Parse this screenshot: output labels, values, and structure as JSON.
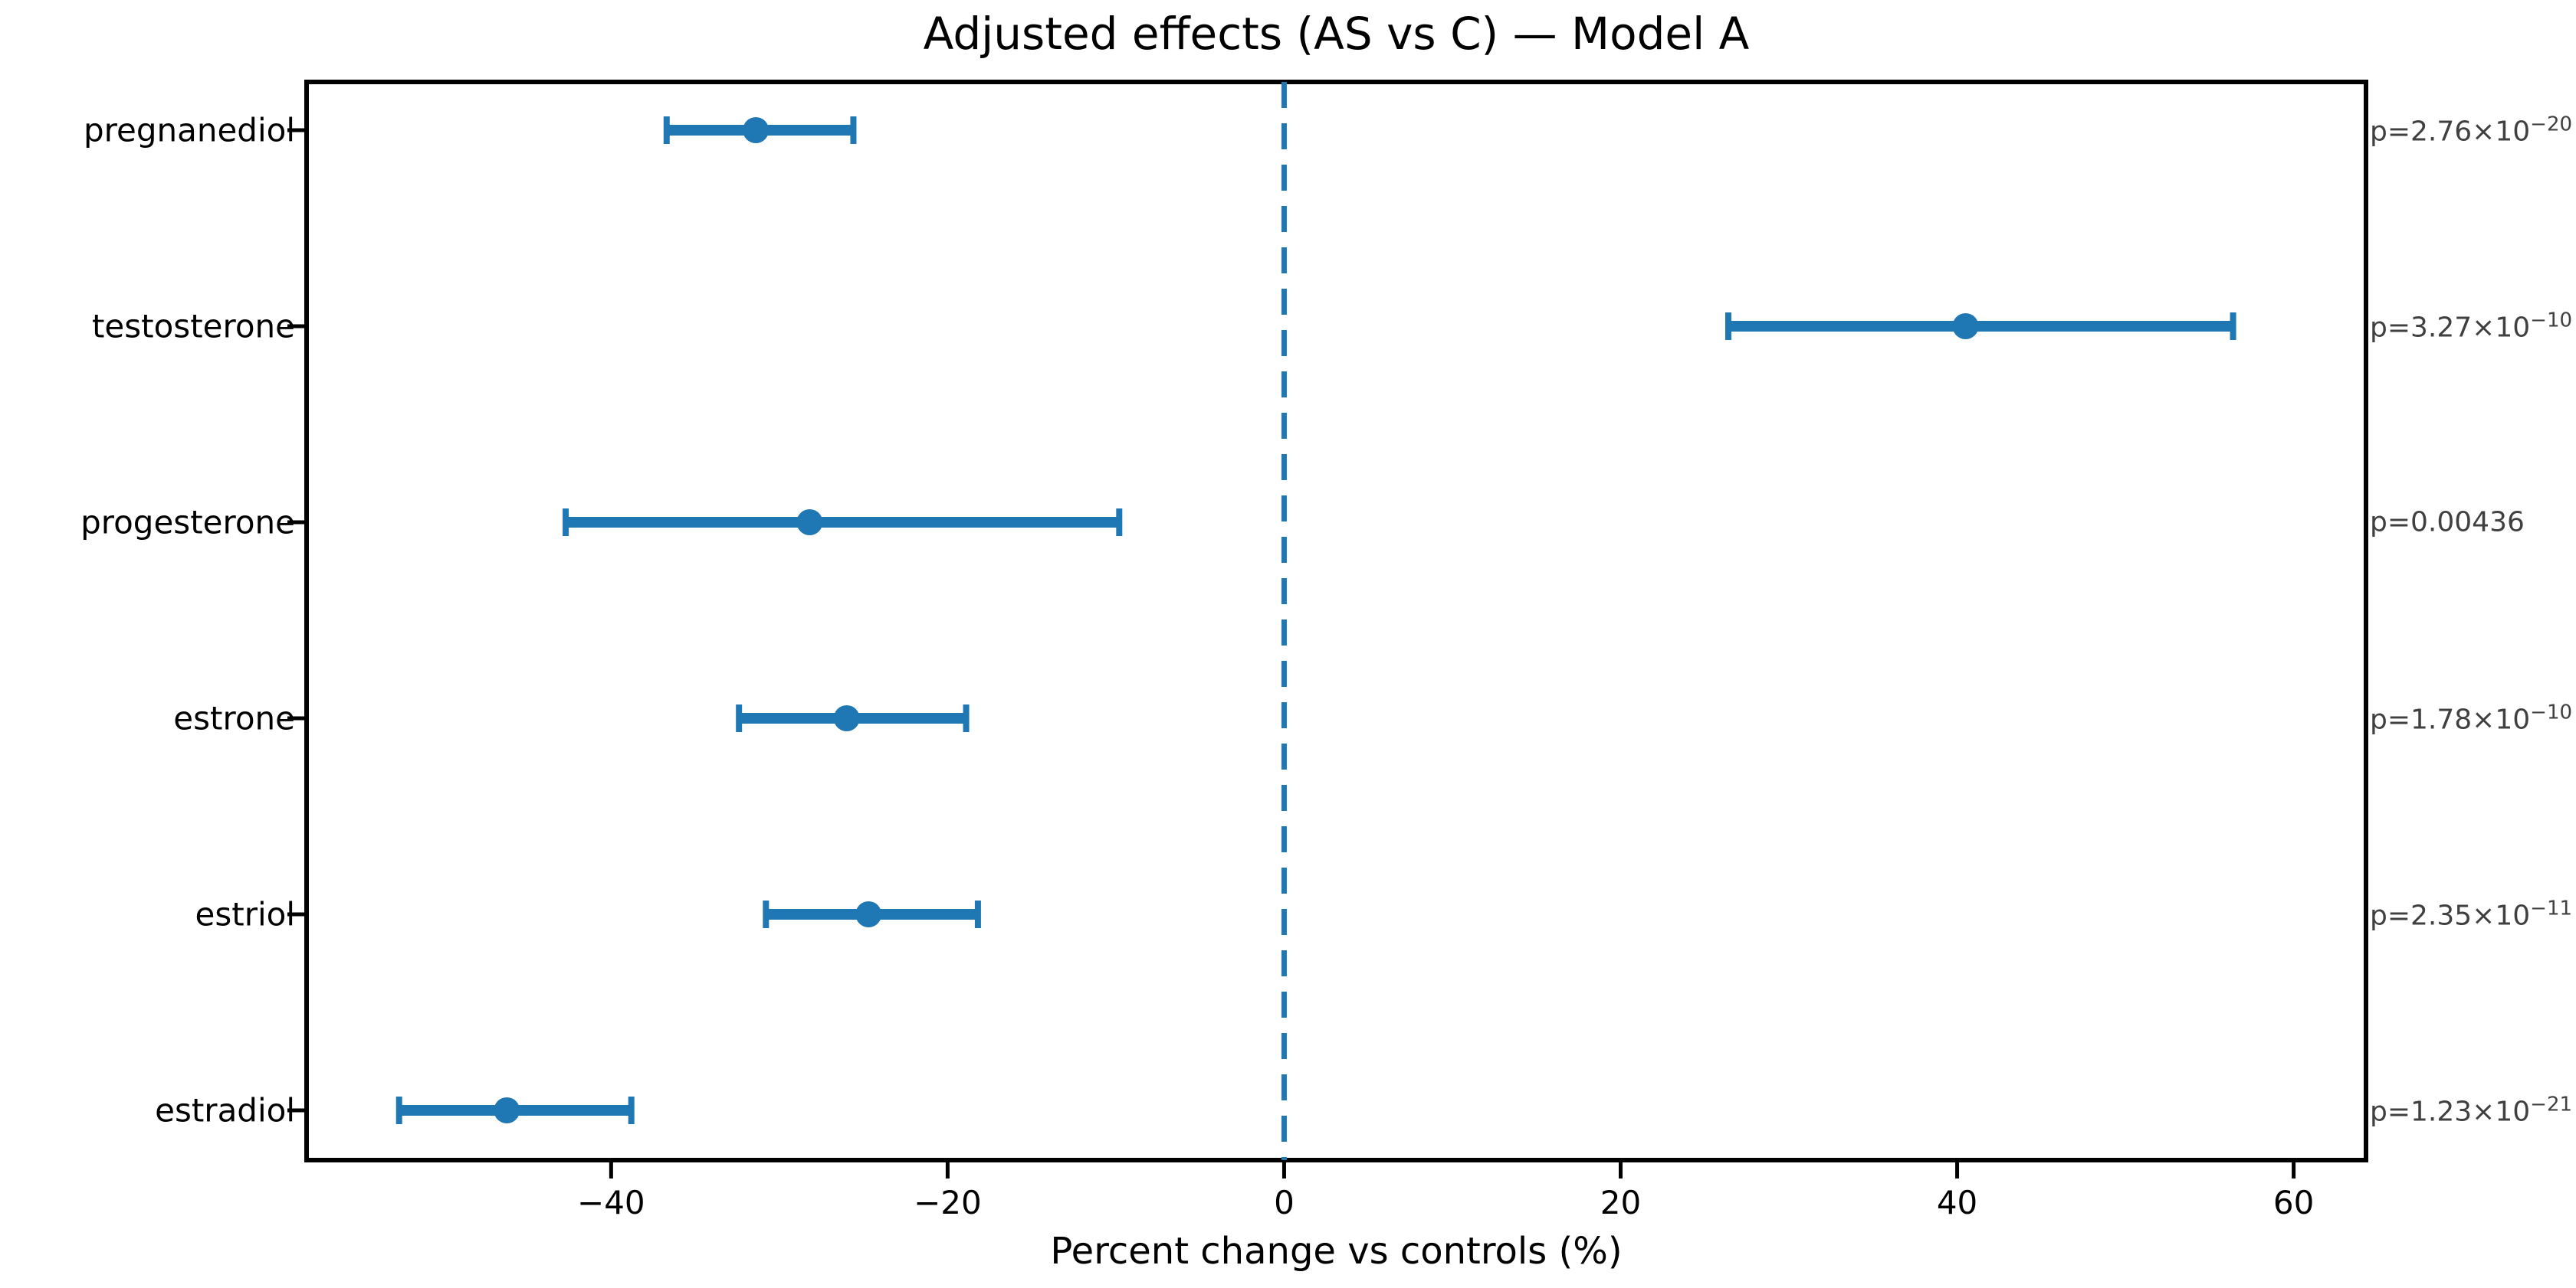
{
  "title": "Adjusted effects (AS vs C) — Model A",
  "xlabel": "Percent change vs controls (%)",
  "colors": {
    "accent": "#1f77b4",
    "axis": "#000000",
    "p_label_text": "#404040",
    "background": "#ffffff"
  },
  "chart_data": {
    "type": "scatter",
    "subtype": "forest-plot-with-error-bars",
    "title": "Adjusted effects (AS vs C) — Model A",
    "xlabel": "Percent change vs controls (%)",
    "ylabel": "",
    "categories": [
      "pregnanediol",
      "testosterone",
      "progesterone",
      "estrone",
      "estriol",
      "estradiol"
    ],
    "values": [
      -31.4,
      40.5,
      -28.2,
      -26.0,
      -24.7,
      -46.2
    ],
    "ci_low": [
      -36.7,
      26.4,
      -42.7,
      -32.4,
      -30.8,
      -52.6
    ],
    "ci_high": [
      -25.6,
      56.4,
      -9.8,
      -18.9,
      -18.2,
      -38.8
    ],
    "p_values": [
      {
        "base": "p=2.76×10",
        "exp": "−20"
      },
      {
        "base": "p=3.27×10",
        "exp": "−10"
      },
      {
        "base": "p=0.00436",
        "exp": ""
      },
      {
        "base": "p=1.78×10",
        "exp": "−10"
      },
      {
        "base": "p=2.35×10",
        "exp": "−11"
      },
      {
        "base": "p=1.23×10",
        "exp": "−21"
      }
    ],
    "xticks": [
      {
        "v": -40,
        "label": "−40"
      },
      {
        "v": -20,
        "label": "−20"
      },
      {
        "v": 0,
        "label": "0"
      },
      {
        "v": 20,
        "label": "20"
      },
      {
        "v": 40,
        "label": "40"
      },
      {
        "v": 60,
        "label": "60"
      }
    ],
    "xlim": [
      -58.1,
      64.3
    ],
    "zero_line": {
      "x": 0,
      "style": "dashed",
      "color": "#1f77b4"
    },
    "grid": false,
    "legend": "none",
    "marker": "circle",
    "series_color": "#1f77b4"
  }
}
